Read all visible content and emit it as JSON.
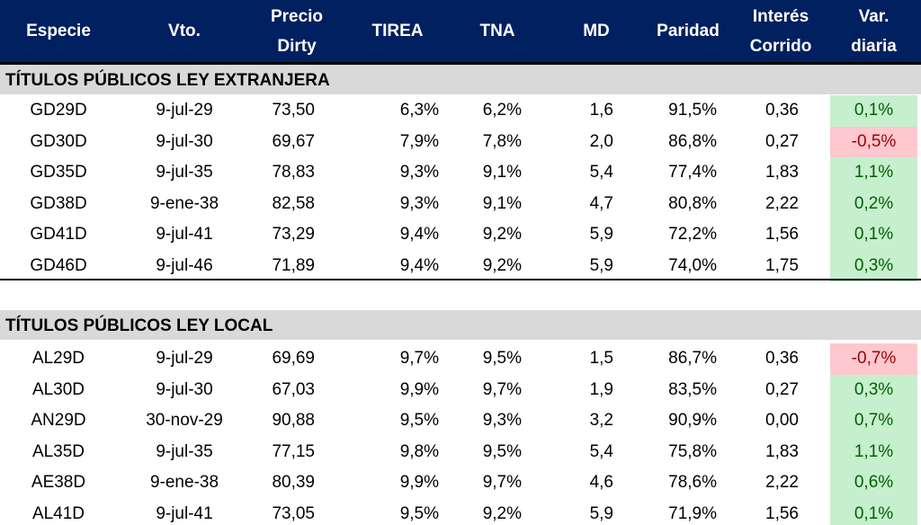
{
  "header": {
    "especie": "Especie",
    "vto": "Vto.",
    "precio_line1": "Precio",
    "precio_line2": "Dirty",
    "tirea": "TIREA",
    "tna": "TNA",
    "md": "MD",
    "paridad": "Paridad",
    "interes_line1": "Interés",
    "interes_line2": "Corrido",
    "var_line1": "Var.",
    "var_line2": "diaria"
  },
  "colors": {
    "header_bg": "#002060",
    "section_bg": "#d9d9d9",
    "positive_bg": "#c6efce",
    "positive_text": "#006100",
    "negative_bg": "#ffc7ce",
    "negative_text": "#9c0006"
  },
  "sections": [
    {
      "title": "TÍTULOS PÚBLICOS LEY EXTRANJERA",
      "rows": [
        {
          "especie": "GD29D",
          "vto": "9-jul-29",
          "precio": "73,50",
          "tirea": "6,3%",
          "tna": "6,2%",
          "md": "1,6",
          "paridad": "91,5%",
          "interes": "0,36",
          "var": "0,1%",
          "trend": "pos"
        },
        {
          "especie": "GD30D",
          "vto": "9-jul-30",
          "precio": "69,67",
          "tirea": "7,9%",
          "tna": "7,8%",
          "md": "2,0",
          "paridad": "86,8%",
          "interes": "0,27",
          "var": "-0,5%",
          "trend": "neg"
        },
        {
          "especie": "GD35D",
          "vto": "9-jul-35",
          "precio": "78,83",
          "tirea": "9,3%",
          "tna": "9,1%",
          "md": "5,4",
          "paridad": "77,4%",
          "interes": "1,83",
          "var": "1,1%",
          "trend": "pos"
        },
        {
          "especie": "GD38D",
          "vto": "9-ene-38",
          "precio": "82,58",
          "tirea": "9,3%",
          "tna": "9,1%",
          "md": "4,7",
          "paridad": "80,8%",
          "interes": "2,22",
          "var": "0,2%",
          "trend": "pos"
        },
        {
          "especie": "GD41D",
          "vto": "9-jul-41",
          "precio": "73,29",
          "tirea": "9,4%",
          "tna": "9,2%",
          "md": "5,9",
          "paridad": "72,2%",
          "interes": "1,56",
          "var": "0,1%",
          "trend": "pos"
        },
        {
          "especie": "GD46D",
          "vto": "9-jul-46",
          "precio": "71,89",
          "tirea": "9,4%",
          "tna": "9,2%",
          "md": "5,9",
          "paridad": "74,0%",
          "interes": "1,75",
          "var": "0,3%",
          "trend": "pos"
        }
      ]
    },
    {
      "title": "TÍTULOS PÚBLICOS LEY LOCAL",
      "rows": [
        {
          "especie": "AL29D",
          "vto": "9-jul-29",
          "precio": "69,69",
          "tirea": "9,7%",
          "tna": "9,5%",
          "md": "1,5",
          "paridad": "86,7%",
          "interes": "0,36",
          "var": "-0,7%",
          "trend": "neg"
        },
        {
          "especie": "AL30D",
          "vto": "9-jul-30",
          "precio": "67,03",
          "tirea": "9,9%",
          "tna": "9,7%",
          "md": "1,9",
          "paridad": "83,5%",
          "interes": "0,27",
          "var": "0,3%",
          "trend": "pos"
        },
        {
          "especie": "AN29D",
          "vto": "30-nov-29",
          "precio": "90,88",
          "tirea": "9,5%",
          "tna": "9,3%",
          "md": "3,2",
          "paridad": "90,9%",
          "interes": "0,00",
          "var": "0,7%",
          "trend": "pos"
        },
        {
          "especie": "AL35D",
          "vto": "9-jul-35",
          "precio": "77,15",
          "tirea": "9,8%",
          "tna": "9,5%",
          "md": "5,4",
          "paridad": "75,8%",
          "interes": "1,83",
          "var": "1,1%",
          "trend": "pos"
        },
        {
          "especie": "AE38D",
          "vto": "9-ene-38",
          "precio": "80,39",
          "tirea": "9,9%",
          "tna": "9,7%",
          "md": "4,6",
          "paridad": "78,6%",
          "interes": "2,22",
          "var": "0,6%",
          "trend": "pos"
        },
        {
          "especie": "AL41D",
          "vto": "9-jul-41",
          "precio": "73,05",
          "tirea": "9,5%",
          "tna": "9,2%",
          "md": "5,9",
          "paridad": "71,9%",
          "interes": "1,56",
          "var": "0,1%",
          "trend": "pos"
        }
      ]
    }
  ]
}
